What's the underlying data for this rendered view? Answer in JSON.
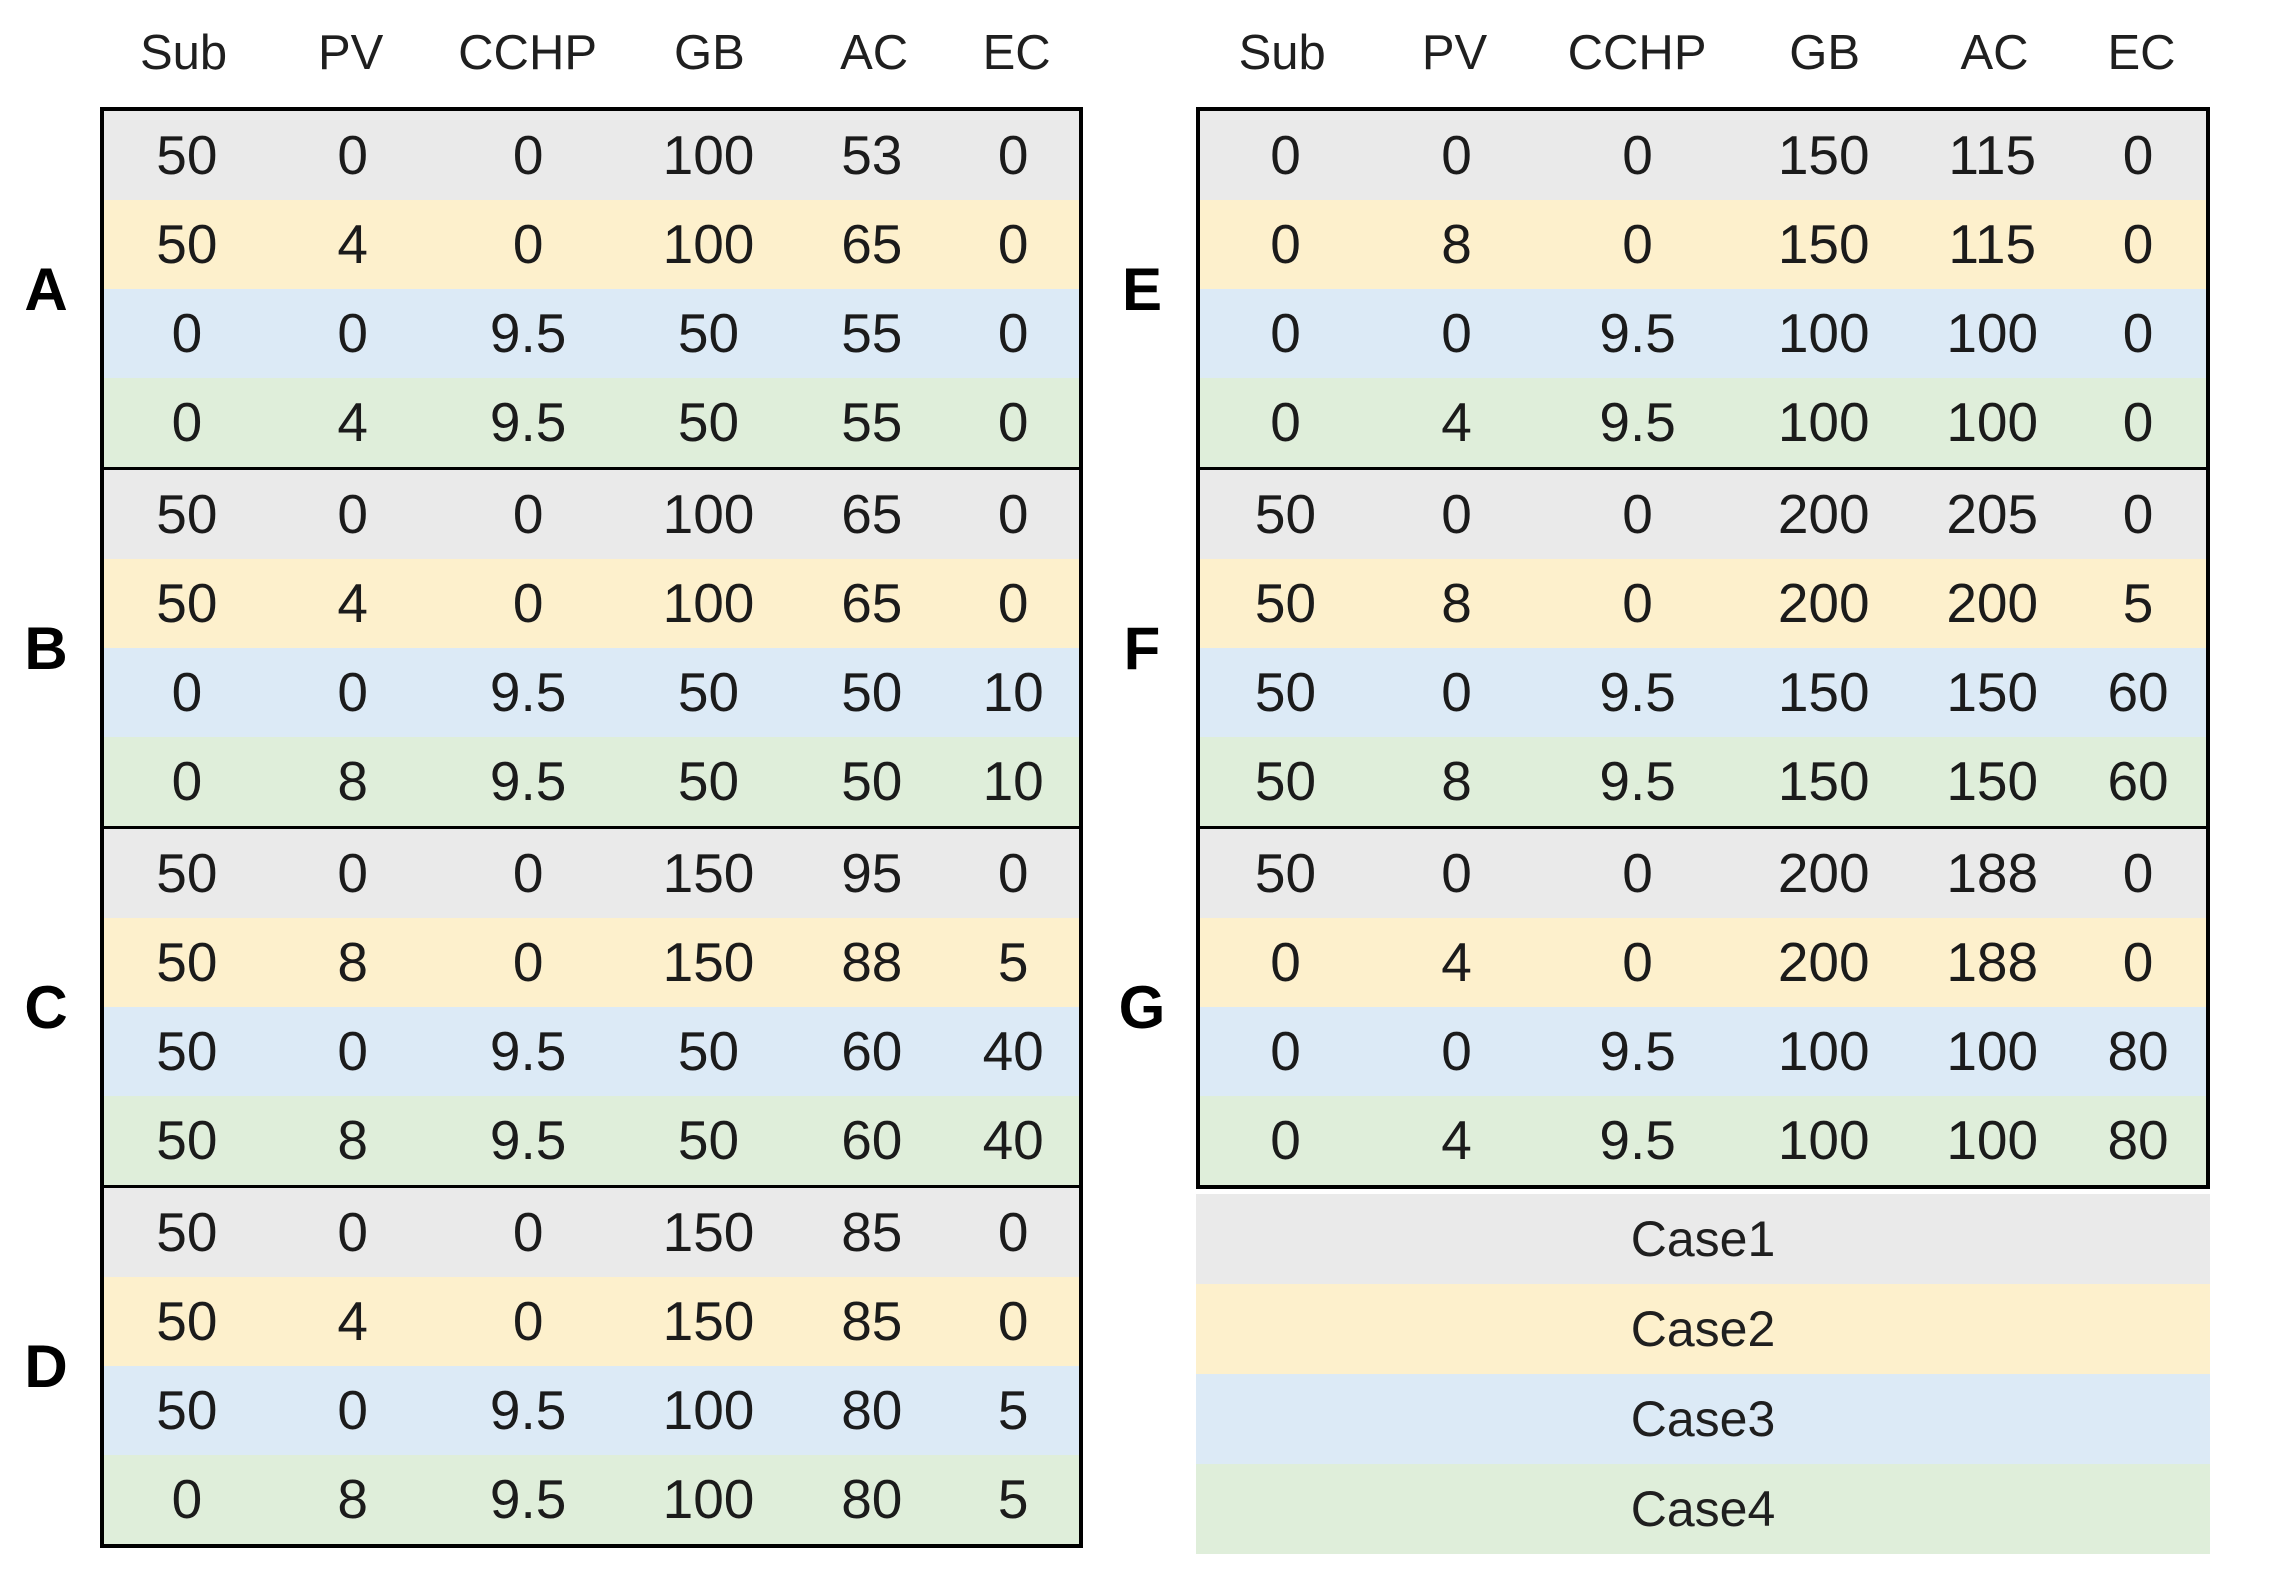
{
  "chart_data": [
    {
      "type": "table",
      "title": "Installed capacities per node, left panel (groups A-D, rows = Case1..Case4)",
      "columns": [
        "Sub",
        "PV",
        "CCHP",
        "GB",
        "AC",
        "EC"
      ],
      "groups": [
        {
          "label": "A",
          "rows": [
            [
              "50",
              "0",
              "0",
              "100",
              "53",
              "0"
            ],
            [
              "50",
              "4",
              "0",
              "100",
              "65",
              "0"
            ],
            [
              "0",
              "0",
              "9.5",
              "50",
              "55",
              "0"
            ],
            [
              "0",
              "4",
              "9.5",
              "50",
              "55",
              "0"
            ]
          ]
        },
        {
          "label": "B",
          "rows": [
            [
              "50",
              "0",
              "0",
              "100",
              "65",
              "0"
            ],
            [
              "50",
              "4",
              "0",
              "100",
              "65",
              "0"
            ],
            [
              "0",
              "0",
              "9.5",
              "50",
              "50",
              "10"
            ],
            [
              "0",
              "8",
              "9.5",
              "50",
              "50",
              "10"
            ]
          ]
        },
        {
          "label": "C",
          "rows": [
            [
              "50",
              "0",
              "0",
              "150",
              "95",
              "0"
            ],
            [
              "50",
              "8",
              "0",
              "150",
              "88",
              "5"
            ],
            [
              "50",
              "0",
              "9.5",
              "50",
              "60",
              "40"
            ],
            [
              "50",
              "8",
              "9.5",
              "50",
              "60",
              "40"
            ]
          ]
        },
        {
          "label": "D",
          "rows": [
            [
              "50",
              "0",
              "0",
              "150",
              "85",
              "0"
            ],
            [
              "50",
              "4",
              "0",
              "150",
              "85",
              "0"
            ],
            [
              "50",
              "0",
              "9.5",
              "100",
              "80",
              "5"
            ],
            [
              "0",
              "8",
              "9.5",
              "100",
              "80",
              "5"
            ]
          ]
        }
      ]
    },
    {
      "type": "table",
      "title": "Installed capacities per node, right panel (groups E-G, rows = Case1..Case4)",
      "columns": [
        "Sub",
        "PV",
        "CCHP",
        "GB",
        "AC",
        "EC"
      ],
      "groups": [
        {
          "label": "E",
          "rows": [
            [
              "0",
              "0",
              "0",
              "150",
              "115",
              "0"
            ],
            [
              "0",
              "8",
              "0",
              "150",
              "115",
              "0"
            ],
            [
              "0",
              "0",
              "9.5",
              "100",
              "100",
              "0"
            ],
            [
              "0",
              "4",
              "9.5",
              "100",
              "100",
              "0"
            ]
          ]
        },
        {
          "label": "F",
          "rows": [
            [
              "50",
              "0",
              "0",
              "200",
              "205",
              "0"
            ],
            [
              "50",
              "8",
              "0",
              "200",
              "200",
              "5"
            ],
            [
              "50",
              "0",
              "9.5",
              "150",
              "150",
              "60"
            ],
            [
              "50",
              "8",
              "9.5",
              "150",
              "150",
              "60"
            ]
          ]
        },
        {
          "label": "G",
          "rows": [
            [
              "50",
              "0",
              "0",
              "200",
              "188",
              "0"
            ],
            [
              "0",
              "4",
              "0",
              "200",
              "188",
              "0"
            ],
            [
              "0",
              "0",
              "9.5",
              "100",
              "100",
              "80"
            ],
            [
              "0",
              "4",
              "9.5",
              "100",
              "100",
              "80"
            ]
          ]
        }
      ]
    }
  ],
  "case_colors": [
    "#EAEAEA",
    "#FDF0CC",
    "#DCEAF6",
    "#DFEEDA"
  ],
  "legend": {
    "items": [
      {
        "label": "Case1",
        "color": "#EAEAEA"
      },
      {
        "label": "Case2",
        "color": "#FDF0CC"
      },
      {
        "label": "Case3",
        "color": "#DCEAF6"
      },
      {
        "label": "Case4",
        "color": "#DFEEDA"
      }
    ]
  }
}
